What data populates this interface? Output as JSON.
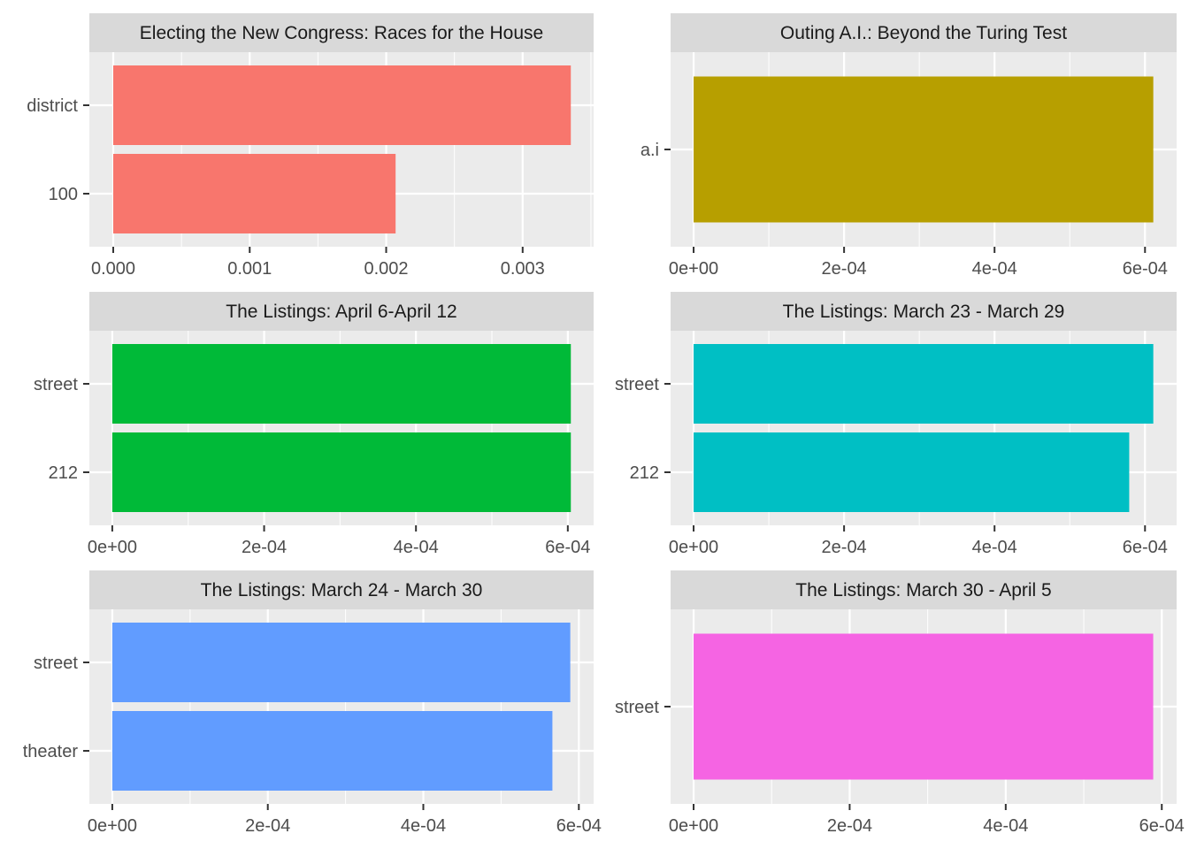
{
  "chart_data": [
    {
      "type": "bar",
      "orientation": "horizontal",
      "title": "Electing the New Congress: Races for the House",
      "categories": [
        "district",
        "100"
      ],
      "values": [
        0.003353,
        0.002069
      ],
      "xlim": [
        -0.000175,
        0.00352
      ],
      "xticks": [
        0,
        0.001,
        0.002,
        0.003
      ],
      "xtick_labels": [
        "0.000",
        "0.001",
        "0.002",
        "0.003"
      ],
      "color": "#F8766D",
      "grid": true
    },
    {
      "type": "bar",
      "orientation": "horizontal",
      "title": "Outing A.I.: Beyond the Turing Test",
      "categories": [
        "a.i"
      ],
      "values": [
        0.000611
      ],
      "xlim": [
        -3.06e-05,
        0.000642
      ],
      "xticks": [
        0,
        0.0002,
        0.0004,
        0.0006
      ],
      "xtick_labels": [
        "0e+00",
        "2e-04",
        "4e-04",
        "6e-04"
      ],
      "color": "#B79F00",
      "grid": true
    },
    {
      "type": "bar",
      "orientation": "horizontal",
      "title": "The Listings: April 6-April 12",
      "categories": [
        "street",
        "212"
      ],
      "values": [
        0.000604,
        0.000604
      ],
      "xlim": [
        -3.02e-05,
        0.000634
      ],
      "xticks": [
        0,
        0.0002,
        0.0004,
        0.0006
      ],
      "xtick_labels": [
        "0e+00",
        "2e-04",
        "4e-04",
        "6e-04"
      ],
      "color": "#00BA38",
      "grid": true
    },
    {
      "type": "bar",
      "orientation": "horizontal",
      "title": "The Listings: March 23 - March 29",
      "categories": [
        "street",
        "212"
      ],
      "values": [
        0.000611,
        0.000579
      ],
      "xlim": [
        -3.06e-05,
        0.000642
      ],
      "xticks": [
        0,
        0.0002,
        0.0004,
        0.0006
      ],
      "xtick_labels": [
        "0e+00",
        "2e-04",
        "4e-04",
        "6e-04"
      ],
      "color": "#00BFC4",
      "grid": true
    },
    {
      "type": "bar",
      "orientation": "horizontal",
      "title": "The Listings: March 24 - March 30",
      "categories": [
        "street",
        "theater"
      ],
      "values": [
        0.000589,
        0.000566
      ],
      "xlim": [
        -2.95e-05,
        0.000619
      ],
      "xticks": [
        0,
        0.0002,
        0.0004,
        0.0006
      ],
      "xtick_labels": [
        "0e+00",
        "2e-04",
        "4e-04",
        "6e-04"
      ],
      "color": "#619CFF",
      "grid": true
    },
    {
      "type": "bar",
      "orientation": "horizontal",
      "title": "The Listings: March 30 - April 5",
      "categories": [
        "street"
      ],
      "values": [
        0.000589
      ],
      "xlim": [
        -2.95e-05,
        0.000619
      ],
      "xticks": [
        0,
        0.0002,
        0.0004,
        0.0006
      ],
      "xtick_labels": [
        "0e+00",
        "2e-04",
        "4e-04",
        "6e-04"
      ],
      "color": "#F564E3",
      "grid": true
    }
  ]
}
